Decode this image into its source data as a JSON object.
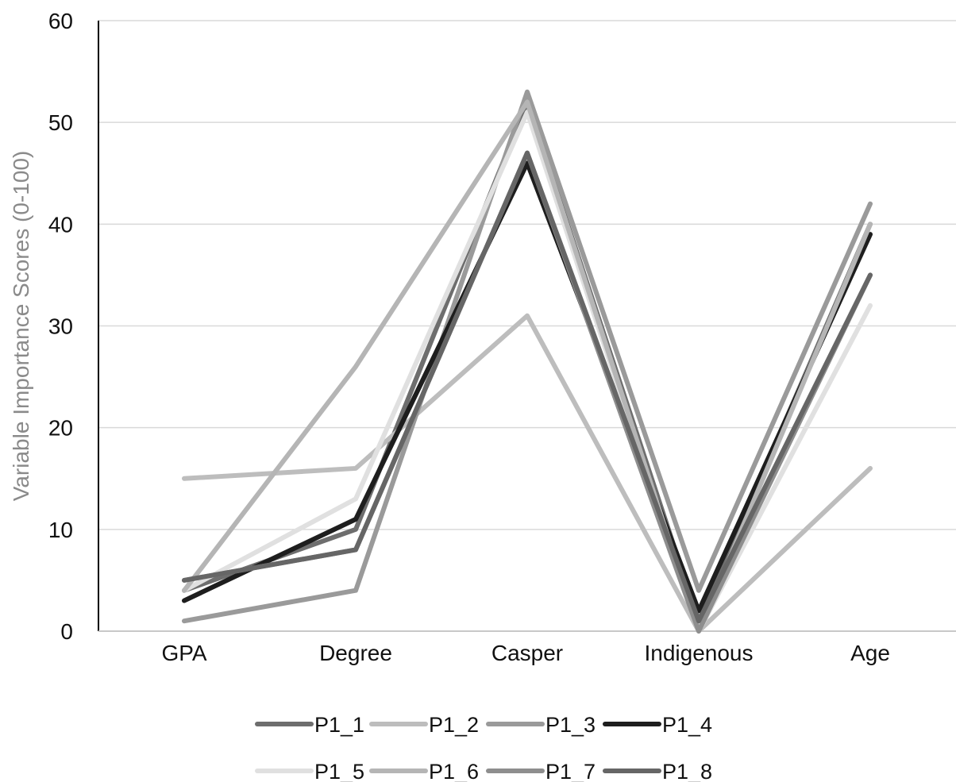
{
  "chart_data": {
    "type": "line",
    "title": "",
    "xlabel": "",
    "ylabel": "Variable Importance Scores (0-100)",
    "categories": [
      "GPA",
      "Degree",
      "Casper",
      "Indigenous",
      "Age"
    ],
    "ylim": [
      0,
      60
    ],
    "yticks": [
      0,
      10,
      20,
      30,
      40,
      50,
      60
    ],
    "grid": true,
    "legend_position": "bottom",
    "series": [
      {
        "name": "P1_1",
        "color": "#6e6e6e",
        "values": [
          4,
          10,
          52,
          1,
          40
        ]
      },
      {
        "name": "P1_2",
        "color": "#bdbdbd",
        "values": [
          15,
          16,
          31,
          0,
          16
        ]
      },
      {
        "name": "P1_3",
        "color": "#9a9a9a",
        "values": [
          1,
          4,
          53,
          4,
          42
        ]
      },
      {
        "name": "P1_4",
        "color": "#1e1e1e",
        "values": [
          3,
          11,
          46,
          2,
          39
        ]
      },
      {
        "name": "P1_5",
        "color": "#e0e0e0",
        "values": [
          4,
          13,
          51,
          0,
          32
        ]
      },
      {
        "name": "P1_6",
        "color": "#b5b5b5",
        "values": [
          4,
          26,
          52,
          0,
          40
        ]
      },
      {
        "name": "P1_7",
        "color": "#8e8e8e",
        "values": [
          5,
          8,
          47,
          0,
          35
        ]
      },
      {
        "name": "P1_8",
        "color": "#666666",
        "values": [
          5,
          8,
          47,
          1,
          35
        ]
      }
    ]
  }
}
